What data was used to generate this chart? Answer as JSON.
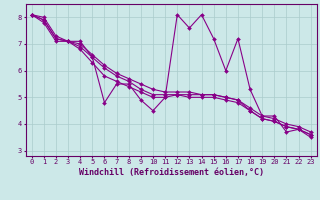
{
  "xlabel": "Windchill (Refroidissement éolien,°C)",
  "background_color": "#cce8e8",
  "grid_color": "#aacccc",
  "line_color": "#880088",
  "xlim": [
    -0.5,
    23.5
  ],
  "ylim": [
    2.8,
    8.5
  ],
  "x_ticks": [
    0,
    1,
    2,
    3,
    4,
    5,
    6,
    7,
    8,
    9,
    10,
    11,
    12,
    13,
    14,
    15,
    16,
    17,
    18,
    19,
    20,
    21,
    22,
    23
  ],
  "y_ticks": [
    3,
    4,
    5,
    6,
    7,
    8
  ],
  "series": [
    [
      8.1,
      8.0,
      7.3,
      7.1,
      7.1,
      6.5,
      4.8,
      5.5,
      5.5,
      4.9,
      4.5,
      5.0,
      8.1,
      7.6,
      8.1,
      7.2,
      6.0,
      7.2,
      5.3,
      4.3,
      4.3,
      3.7,
      3.8,
      3.5
    ],
    [
      8.1,
      7.8,
      7.1,
      7.1,
      6.8,
      6.3,
      5.8,
      5.6,
      5.4,
      5.2,
      5.0,
      5.0,
      5.1,
      5.1,
      5.1,
      5.1,
      5.0,
      4.9,
      4.5,
      4.2,
      4.1,
      3.9,
      3.8,
      3.6
    ],
    [
      8.1,
      7.9,
      7.2,
      7.1,
      6.9,
      6.5,
      6.1,
      5.8,
      5.6,
      5.3,
      5.1,
      5.1,
      5.1,
      5.0,
      5.0,
      5.0,
      4.9,
      4.8,
      4.5,
      4.2,
      4.1,
      3.9,
      3.8,
      3.6
    ],
    [
      8.1,
      7.9,
      7.2,
      7.1,
      7.0,
      6.6,
      6.2,
      5.9,
      5.7,
      5.5,
      5.3,
      5.2,
      5.2,
      5.2,
      5.1,
      5.1,
      5.0,
      4.9,
      4.6,
      4.3,
      4.2,
      4.0,
      3.9,
      3.7
    ]
  ],
  "marker": "D",
  "markersize": 2.0,
  "linewidth": 0.8,
  "xlabel_fontsize": 6,
  "tick_fontsize": 5,
  "label_color": "#660066",
  "spine_color": "#660066",
  "tick_color": "#660066"
}
